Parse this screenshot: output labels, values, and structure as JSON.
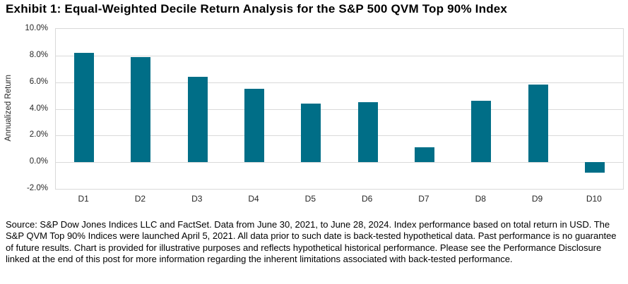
{
  "chart_data": {
    "type": "bar",
    "title": "Exhibit 1: Equal-Weighted Decile Return Analysis for the S&P 500 QVM Top 90% Index",
    "categories": [
      "D1",
      "D2",
      "D3",
      "D4",
      "D5",
      "D6",
      "D7",
      "D8",
      "D9",
      "D10"
    ],
    "values": [
      8.2,
      7.9,
      6.4,
      5.5,
      4.4,
      4.5,
      1.1,
      4.6,
      5.8,
      -0.8
    ],
    "units": "percent",
    "xlabel": "",
    "ylabel": "Annualized Return",
    "ylim": [
      -2,
      10
    ],
    "ytick_values": [
      10,
      8,
      6,
      4,
      2,
      0,
      -2
    ],
    "ytick_labels": [
      "10.0%",
      "8.0%",
      "6.0%",
      "4.0%",
      "2.0%",
      "0.0%",
      "-2.0%"
    ],
    "grid": true,
    "legend": false,
    "bar_color": "#006E87",
    "gridline_color": "#D9D9D9"
  },
  "footnote": "Source: S&P Dow Jones Indices LLC and FactSet. Data from June 30, 2021, to June 28, 2024. Index performance based on total return in USD. The S&P QVM Top 90% Indices were launched April 5, 2021. All data prior to such date is back-tested hypothetical data. Past performance is no guarantee of future results. Chart is provided for illustrative purposes and reflects hypothetical historical performance. Please see the Performance Disclosure linked at the end of this post for more information regarding the inherent limitations associated with back-tested performance."
}
